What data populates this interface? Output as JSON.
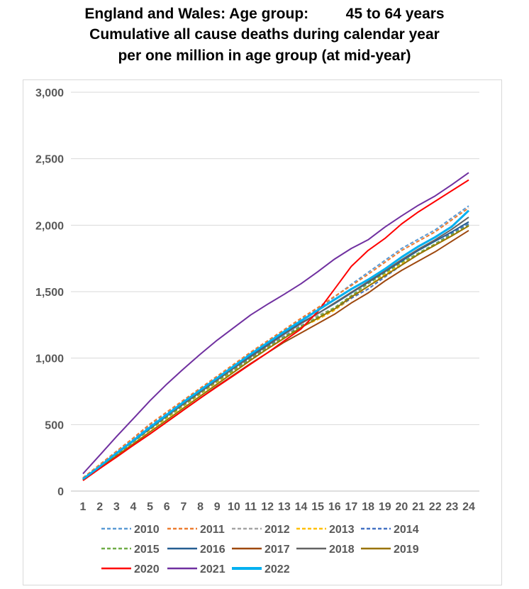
{
  "title_lines": [
    "England and Wales: Age group:         45 to 64 years",
    "Cumulative all cause deaths during calendar year",
    "per one million in age group (at mid-year)"
  ],
  "chart_data": {
    "type": "line",
    "title": "England and Wales: Age group: 45 to 64 years / Cumulative all cause deaths during calendar year per one million in age group (at mid-year)",
    "xlabel": "",
    "ylabel": "",
    "x": [
      1,
      2,
      3,
      4,
      5,
      6,
      7,
      8,
      9,
      10,
      11,
      12,
      13,
      14,
      15,
      16,
      17,
      18,
      19,
      20,
      21,
      22,
      23,
      24
    ],
    "ylim": [
      0,
      3000
    ],
    "yticks": [
      0,
      500,
      1000,
      1500,
      2000,
      2500,
      3000
    ],
    "ytick_labels": [
      "0",
      "500",
      "1,000",
      "1,500",
      "2,000",
      "2,500",
      "3,000"
    ],
    "grid": true,
    "legend_placement": "bottom",
    "series": [
      {
        "name": "2010",
        "color": "#5B9BD5",
        "dashed": true,
        "values": [
          95,
          195,
          295,
          395,
          495,
          585,
          675,
          765,
          855,
          945,
          1035,
          1120,
          1205,
          1290,
          1370,
          1460,
          1555,
          1645,
          1735,
          1825,
          1895,
          1965,
          2055,
          2145
        ]
      },
      {
        "name": "2011",
        "color": "#ED7D31",
        "dashed": true,
        "values": [
          100,
          200,
          300,
          400,
          505,
          595,
          685,
          775,
          865,
          955,
          1045,
          1130,
          1215,
          1300,
          1380,
          1465,
          1545,
          1630,
          1720,
          1810,
          1880,
          1950,
          2040,
          2130
        ]
      },
      {
        "name": "2012",
        "color": "#A5A5A5",
        "dashed": true,
        "values": [
          90,
          190,
          290,
          385,
          480,
          570,
          660,
          750,
          840,
          930,
          1020,
          1105,
          1185,
          1265,
          1320,
          1380,
          1470,
          1560,
          1650,
          1740,
          1810,
          1880,
          1950,
          2020
        ]
      },
      {
        "name": "2013",
        "color": "#FFC000",
        "dashed": true,
        "values": [
          85,
          180,
          275,
          370,
          460,
          550,
          640,
          730,
          820,
          905,
          990,
          1075,
          1155,
          1235,
          1290,
          1360,
          1450,
          1540,
          1630,
          1710,
          1780,
          1850,
          1920,
          1995
        ]
      },
      {
        "name": "2014",
        "color": "#4472C4",
        "dashed": true,
        "values": [
          90,
          185,
          280,
          375,
          470,
          560,
          650,
          740,
          830,
          915,
          1000,
          1085,
          1165,
          1245,
          1300,
          1370,
          1450,
          1520,
          1610,
          1700,
          1780,
          1860,
          1940,
          2010
        ]
      },
      {
        "name": "2015",
        "color": "#70AD47",
        "dashed": true,
        "values": [
          85,
          180,
          275,
          370,
          465,
          555,
          645,
          735,
          825,
          910,
          995,
          1080,
          1160,
          1240,
          1310,
          1380,
          1470,
          1560,
          1640,
          1720,
          1790,
          1860,
          1930,
          2000
        ]
      },
      {
        "name": "2016",
        "color": "#255E91",
        "dashed": false,
        "values": [
          90,
          185,
          285,
          380,
          475,
          570,
          660,
          750,
          840,
          930,
          1020,
          1100,
          1185,
          1265,
          1335,
          1410,
          1490,
          1570,
          1650,
          1730,
          1810,
          1880,
          1950,
          2025
        ]
      },
      {
        "name": "2017",
        "color": "#9E480E",
        "dashed": false,
        "values": [
          80,
          170,
          260,
          345,
          430,
          520,
          610,
          700,
          790,
          875,
          960,
          1040,
          1120,
          1190,
          1260,
          1330,
          1415,
          1490,
          1580,
          1660,
          1730,
          1800,
          1880,
          1960
        ]
      },
      {
        "name": "2018",
        "color": "#636363",
        "dashed": false,
        "values": [
          90,
          185,
          280,
          375,
          470,
          565,
          655,
          745,
          835,
          925,
          1010,
          1095,
          1180,
          1260,
          1335,
          1415,
          1495,
          1575,
          1655,
          1740,
          1820,
          1890,
          1970,
          2060
        ]
      },
      {
        "name": "2019",
        "color": "#997300",
        "dashed": false,
        "values": [
          85,
          175,
          265,
          355,
          445,
          535,
          625,
          715,
          805,
          895,
          985,
          1070,
          1150,
          1230,
          1300,
          1370,
          1460,
          1540,
          1620,
          1700,
          1780,
          1850,
          1920,
          1995
        ]
      },
      {
        "name": "2020",
        "color": "#FF0000",
        "dashed": false,
        "values": [
          80,
          170,
          255,
          345,
          430,
          520,
          610,
          700,
          785,
          870,
          955,
          1040,
          1130,
          1220,
          1350,
          1520,
          1690,
          1810,
          1900,
          2010,
          2100,
          2180,
          2260,
          2340
        ]
      },
      {
        "name": "2021",
        "color": "#7030A0",
        "dashed": false,
        "values": [
          130,
          270,
          410,
          545,
          680,
          805,
          920,
          1030,
          1135,
          1230,
          1325,
          1405,
          1480,
          1560,
          1650,
          1745,
          1825,
          1890,
          1985,
          2070,
          2150,
          2220,
          2305,
          2395
        ]
      },
      {
        "name": "2022",
        "color": "#00B0F0",
        "dashed": false,
        "thick": true,
        "values": [
          90,
          185,
          285,
          380,
          480,
          575,
          670,
          760,
          850,
          940,
          1030,
          1115,
          1200,
          1280,
          1360,
          1440,
          1520,
          1590,
          1670,
          1760,
          1840,
          1910,
          1990,
          2110
        ]
      }
    ]
  }
}
